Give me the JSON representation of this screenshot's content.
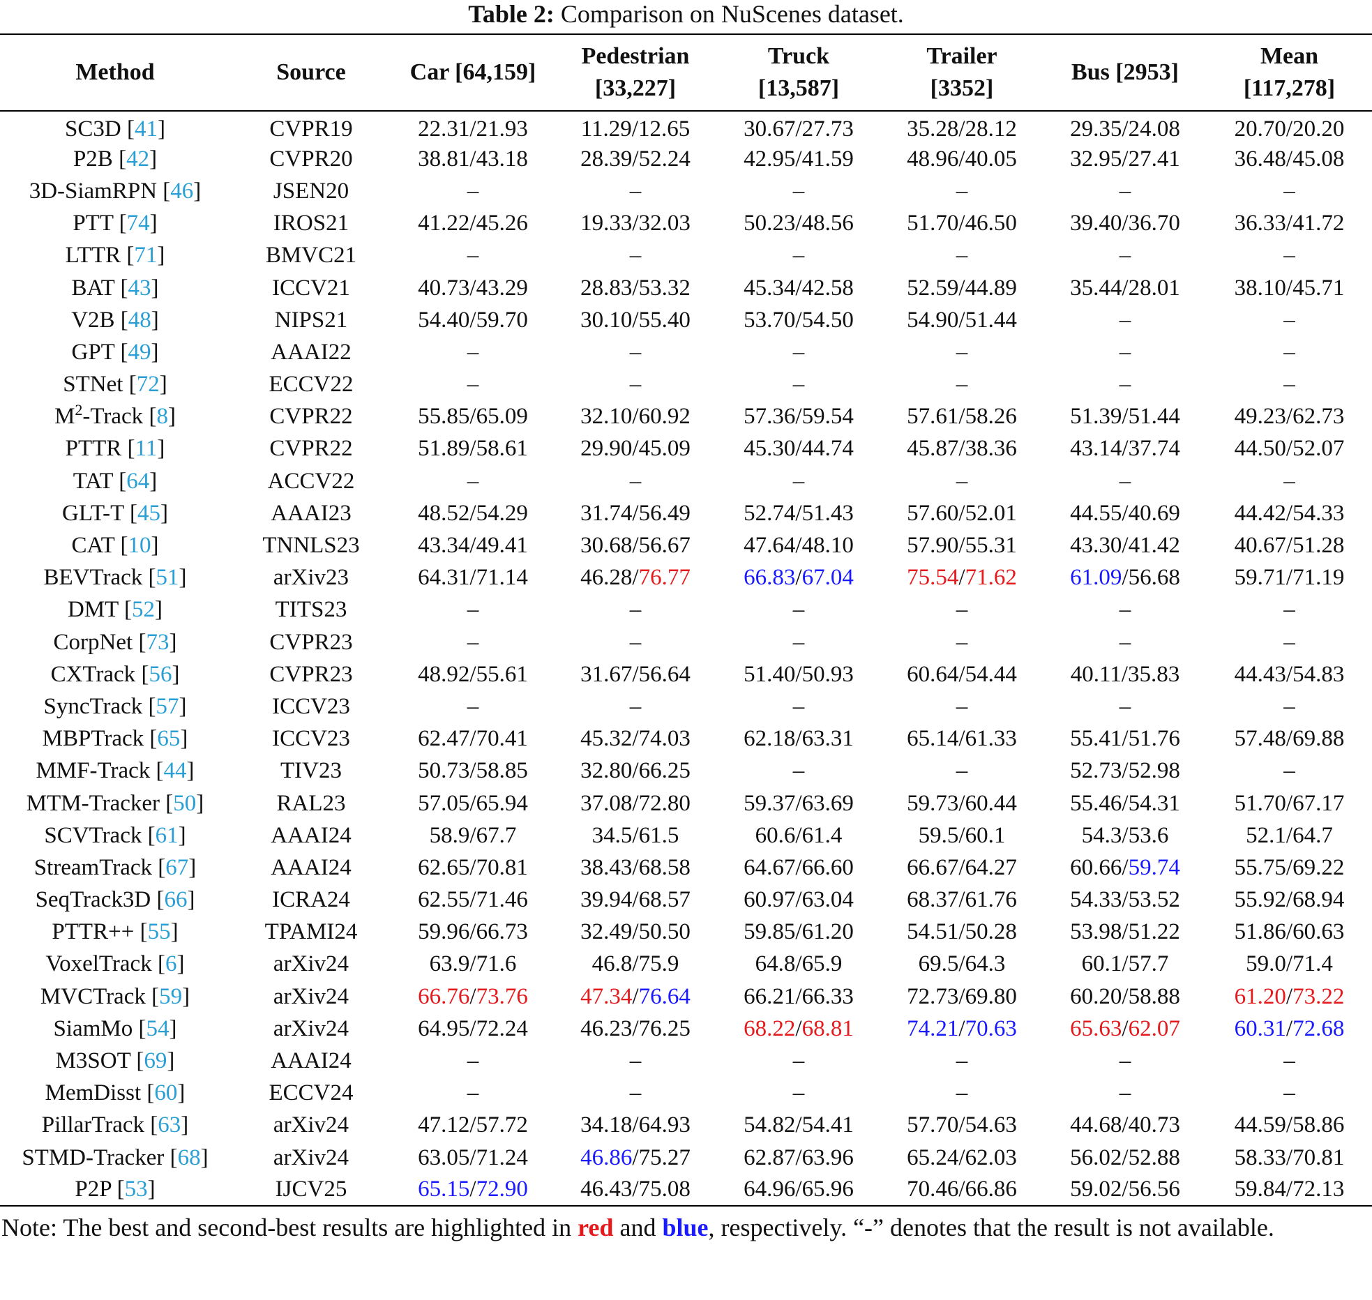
{
  "caption": {
    "label": "Table 2:",
    "text": "Comparison on NuScenes dataset."
  },
  "headers": [
    "Method",
    "Source",
    "Car [64,159]",
    "Pedestrian [33,227]",
    "Truck [13,587]",
    "Trailer [3352]",
    "Bus [2953]",
    "Mean [117,278]"
  ],
  "rows": [
    {
      "m": "SC3D",
      "ref": "41",
      "src": "CVPR19",
      "v": [
        [
          "22.31",
          "",
          "21.93",
          ""
        ],
        [
          "11.29",
          "",
          "12.65",
          ""
        ],
        [
          "30.67",
          "",
          "27.73",
          ""
        ],
        [
          "35.28",
          "",
          "28.12",
          ""
        ],
        [
          "29.35",
          "",
          "24.08",
          ""
        ],
        [
          "20.70",
          "",
          "20.20",
          ""
        ]
      ]
    },
    {
      "m": "P2B",
      "ref": "42",
      "src": "CVPR20",
      "v": [
        [
          "38.81",
          "",
          "43.18",
          ""
        ],
        [
          "28.39",
          "",
          "52.24",
          ""
        ],
        [
          "42.95",
          "",
          "41.59",
          ""
        ],
        [
          "48.96",
          "",
          "40.05",
          ""
        ],
        [
          "32.95",
          "",
          "27.41",
          ""
        ],
        [
          "36.48",
          "",
          "45.08",
          ""
        ]
      ]
    },
    {
      "m": "3D-SiamRPN",
      "ref": "46",
      "src": "JSEN20",
      "v": [
        "–",
        "–",
        "–",
        "–",
        "–",
        "–"
      ]
    },
    {
      "m": "PTT",
      "ref": "74",
      "src": "IROS21",
      "v": [
        [
          "41.22",
          "",
          "45.26",
          ""
        ],
        [
          "19.33",
          "",
          "32.03",
          ""
        ],
        [
          "50.23",
          "",
          "48.56",
          ""
        ],
        [
          "51.70",
          "",
          "46.50",
          ""
        ],
        [
          "39.40",
          "",
          "36.70",
          ""
        ],
        [
          "36.33",
          "",
          "41.72",
          ""
        ]
      ]
    },
    {
      "m": "LTTR",
      "ref": "71",
      "src": "BMVC21",
      "v": [
        "–",
        "–",
        "–",
        "–",
        "–",
        "–"
      ]
    },
    {
      "m": "BAT",
      "ref": "43",
      "src": "ICCV21",
      "v": [
        [
          "40.73",
          "",
          "43.29",
          ""
        ],
        [
          "28.83",
          "",
          "53.32",
          ""
        ],
        [
          "45.34",
          "",
          "42.58",
          ""
        ],
        [
          "52.59",
          "",
          "44.89",
          ""
        ],
        [
          "35.44",
          "",
          "28.01",
          ""
        ],
        [
          "38.10",
          "",
          "45.71",
          ""
        ]
      ]
    },
    {
      "m": "V2B",
      "ref": "48",
      "src": "NIPS21",
      "v": [
        [
          "54.40",
          "",
          "59.70",
          ""
        ],
        [
          "30.10",
          "",
          "55.40",
          ""
        ],
        [
          "53.70",
          "",
          "54.50",
          ""
        ],
        [
          "54.90",
          "",
          "51.44",
          ""
        ],
        "–",
        "–"
      ]
    },
    {
      "m": "GPT",
      "ref": "49",
      "src": "AAAI22",
      "v": [
        "–",
        "–",
        "–",
        "–",
        "–",
        "–"
      ]
    },
    {
      "m": "STNet",
      "ref": "72",
      "src": "ECCV22",
      "v": [
        "–",
        "–",
        "–",
        "–",
        "–",
        "–"
      ]
    },
    {
      "m": "M",
      "sup": "2",
      "m2": "-Track",
      "ref": "8",
      "src": "CVPR22",
      "v": [
        [
          "55.85",
          "",
          "65.09",
          ""
        ],
        [
          "32.10",
          "",
          "60.92",
          ""
        ],
        [
          "57.36",
          "",
          "59.54",
          ""
        ],
        [
          "57.61",
          "",
          "58.26",
          ""
        ],
        [
          "51.39",
          "",
          "51.44",
          ""
        ],
        [
          "49.23",
          "",
          "62.73",
          ""
        ]
      ]
    },
    {
      "m": "PTTR",
      "ref": "11",
      "src": "CVPR22",
      "v": [
        [
          "51.89",
          "",
          "58.61",
          ""
        ],
        [
          "29.90",
          "",
          "45.09",
          ""
        ],
        [
          "45.30",
          "",
          "44.74",
          ""
        ],
        [
          "45.87",
          "",
          "38.36",
          ""
        ],
        [
          "43.14",
          "",
          "37.74",
          ""
        ],
        [
          "44.50",
          "",
          "52.07",
          ""
        ]
      ]
    },
    {
      "m": "TAT",
      "ref": "64",
      "src": "ACCV22",
      "v": [
        "–",
        "–",
        "–",
        "–",
        "–",
        "–"
      ]
    },
    {
      "m": "GLT-T",
      "ref": "45",
      "src": "AAAI23",
      "v": [
        [
          "48.52",
          "",
          "54.29",
          ""
        ],
        [
          "31.74",
          "",
          "56.49",
          ""
        ],
        [
          "52.74",
          "",
          "51.43",
          ""
        ],
        [
          "57.60",
          "",
          "52.01",
          ""
        ],
        [
          "44.55",
          "",
          "40.69",
          ""
        ],
        [
          "44.42",
          "",
          "54.33",
          ""
        ]
      ]
    },
    {
      "m": "CAT",
      "ref": "10",
      "src": "TNNLS23",
      "v": [
        [
          "43.34",
          "",
          "49.41",
          ""
        ],
        [
          "30.68",
          "",
          "56.67",
          ""
        ],
        [
          "47.64",
          "",
          "48.10",
          ""
        ],
        [
          "57.90",
          "",
          "55.31",
          ""
        ],
        [
          "43.30",
          "",
          "41.42",
          ""
        ],
        [
          "40.67",
          "",
          "51.28",
          ""
        ]
      ]
    },
    {
      "m": "BEVTrack",
      "ref": "51",
      "src": "arXiv23",
      "v": [
        [
          "64.31",
          "",
          "71.14",
          ""
        ],
        [
          "46.28",
          "",
          "76.77",
          "r"
        ],
        [
          "66.83",
          "b",
          "67.04",
          "b"
        ],
        [
          "75.54",
          "r",
          "71.62",
          "r"
        ],
        [
          "61.09",
          "b",
          "56.68",
          ""
        ],
        [
          "59.71",
          "",
          "71.19",
          ""
        ]
      ]
    },
    {
      "m": "DMT",
      "ref": "52",
      "src": "TITS23",
      "v": [
        "–",
        "–",
        "–",
        "–",
        "–",
        "–"
      ]
    },
    {
      "m": "CorpNet",
      "ref": "73",
      "src": "CVPR23",
      "v": [
        "–",
        "–",
        "–",
        "–",
        "–",
        "–"
      ]
    },
    {
      "m": "CXTrack",
      "ref": "56",
      "src": "CVPR23",
      "v": [
        [
          "48.92",
          "",
          "55.61",
          ""
        ],
        [
          "31.67",
          "",
          "56.64",
          ""
        ],
        [
          "51.40",
          "",
          "50.93",
          ""
        ],
        [
          "60.64",
          "",
          "54.44",
          ""
        ],
        [
          "40.11",
          "",
          "35.83",
          ""
        ],
        [
          "44.43",
          "",
          "54.83",
          ""
        ]
      ]
    },
    {
      "m": "SyncTrack",
      "ref": "57",
      "src": "ICCV23",
      "v": [
        "–",
        "–",
        "–",
        "–",
        "–",
        "–"
      ]
    },
    {
      "m": "MBPTrack",
      "ref": "65",
      "src": "ICCV23",
      "v": [
        [
          "62.47",
          "",
          "70.41",
          ""
        ],
        [
          "45.32",
          "",
          "74.03",
          ""
        ],
        [
          "62.18",
          "",
          "63.31",
          ""
        ],
        [
          "65.14",
          "",
          "61.33",
          ""
        ],
        [
          "55.41",
          "",
          "51.76",
          ""
        ],
        [
          "57.48",
          "",
          "69.88",
          ""
        ]
      ]
    },
    {
      "m": "MMF-Track",
      "ref": "44",
      "src": "TIV23",
      "v": [
        [
          "50.73",
          "",
          "58.85",
          ""
        ],
        [
          "32.80",
          "",
          "66.25",
          ""
        ],
        "–",
        "–",
        [
          "52.73",
          "",
          "52.98",
          ""
        ],
        "–"
      ]
    },
    {
      "m": "MTM-Tracker",
      "ref": "50",
      "src": "RAL23",
      "v": [
        [
          "57.05",
          "",
          "65.94",
          ""
        ],
        [
          "37.08",
          "",
          "72.80",
          ""
        ],
        [
          "59.37",
          "",
          "63.69",
          ""
        ],
        [
          "59.73",
          "",
          "60.44",
          ""
        ],
        [
          "55.46",
          "",
          "54.31",
          ""
        ],
        [
          "51.70",
          "",
          "67.17",
          ""
        ]
      ]
    },
    {
      "m": "SCVTrack",
      "ref": "61",
      "src": "AAAI24",
      "v": [
        [
          "58.9",
          "",
          "67.7",
          ""
        ],
        [
          "34.5",
          "",
          "61.5",
          ""
        ],
        [
          "60.6",
          "",
          "61.4",
          ""
        ],
        [
          "59.5",
          "",
          "60.1",
          ""
        ],
        [
          "54.3",
          "",
          "53.6",
          ""
        ],
        [
          "52.1",
          "",
          "64.7",
          ""
        ]
      ]
    },
    {
      "m": "StreamTrack",
      "ref": "67",
      "src": "AAAI24",
      "v": [
        [
          "62.65",
          "",
          "70.81",
          ""
        ],
        [
          "38.43",
          "",
          "68.58",
          ""
        ],
        [
          "64.67",
          "",
          "66.60",
          ""
        ],
        [
          "66.67",
          "",
          "64.27",
          ""
        ],
        [
          "60.66",
          "",
          "59.74",
          "b"
        ],
        [
          "55.75",
          "",
          "69.22",
          ""
        ]
      ]
    },
    {
      "m": "SeqTrack3D",
      "ref": "66",
      "src": "ICRA24",
      "v": [
        [
          "62.55",
          "",
          "71.46",
          ""
        ],
        [
          "39.94",
          "",
          "68.57",
          ""
        ],
        [
          "60.97",
          "",
          "63.04",
          ""
        ],
        [
          "68.37",
          "",
          "61.76",
          ""
        ],
        [
          "54.33",
          "",
          "53.52",
          ""
        ],
        [
          "55.92",
          "",
          "68.94",
          ""
        ]
      ]
    },
    {
      "m": "PTTR++",
      "ref": "55",
      "src": "TPAMI24",
      "v": [
        [
          "59.96",
          "",
          "66.73",
          ""
        ],
        [
          "32.49",
          "",
          "50.50",
          ""
        ],
        [
          "59.85",
          "",
          "61.20",
          ""
        ],
        [
          "54.51",
          "",
          "50.28",
          ""
        ],
        [
          "53.98",
          "",
          "51.22",
          ""
        ],
        [
          "51.86",
          "",
          "60.63",
          ""
        ]
      ]
    },
    {
      "m": "VoxelTrack",
      "ref": "6",
      "src": "arXiv24",
      "v": [
        [
          "63.9",
          "",
          "71.6",
          ""
        ],
        [
          "46.8",
          "",
          "75.9",
          ""
        ],
        [
          "64.8",
          "",
          "65.9",
          ""
        ],
        [
          "69.5",
          "",
          "64.3",
          ""
        ],
        [
          "60.1",
          "",
          "57.7",
          ""
        ],
        [
          "59.0",
          "",
          "71.4",
          ""
        ]
      ]
    },
    {
      "m": "MVCTrack",
      "ref": "59",
      "src": "arXiv24",
      "v": [
        [
          "66.76",
          "r",
          "73.76",
          "r"
        ],
        [
          "47.34",
          "r",
          "76.64",
          "b"
        ],
        [
          "66.21",
          "",
          "66.33",
          ""
        ],
        [
          "72.73",
          "",
          "69.80",
          ""
        ],
        [
          "60.20",
          "",
          "58.88",
          ""
        ],
        [
          "61.20",
          "r",
          "73.22",
          "r"
        ]
      ]
    },
    {
      "m": "SiamMo",
      "ref": "54",
      "src": "arXiv24",
      "v": [
        [
          "64.95",
          "",
          "72.24",
          ""
        ],
        [
          "46.23",
          "",
          "76.25",
          ""
        ],
        [
          "68.22",
          "r",
          "68.81",
          "r"
        ],
        [
          "74.21",
          "b",
          "70.63",
          "b"
        ],
        [
          "65.63",
          "r",
          "62.07",
          "r"
        ],
        [
          "60.31",
          "b",
          "72.68",
          "b"
        ]
      ]
    },
    {
      "m": "M3SOT",
      "ref": "69",
      "src": "AAAI24",
      "v": [
        "–",
        "–",
        "–",
        "–",
        "–",
        "–"
      ]
    },
    {
      "m": "MemDisst",
      "ref": "60",
      "src": "ECCV24",
      "v": [
        "–",
        "–",
        "–",
        "–",
        "–",
        "–"
      ]
    },
    {
      "m": "PillarTrack",
      "ref": "63",
      "src": "arXiv24",
      "v": [
        [
          "47.12",
          "",
          "57.72",
          ""
        ],
        [
          "34.18",
          "",
          "64.93",
          ""
        ],
        [
          "54.82",
          "",
          "54.41",
          ""
        ],
        [
          "57.70",
          "",
          "54.63",
          ""
        ],
        [
          "44.68",
          "",
          "40.73",
          ""
        ],
        [
          "44.59",
          "",
          "58.86",
          ""
        ]
      ]
    },
    {
      "m": "STMD-Tracker",
      "ref": "68",
      "src": "arXiv24",
      "v": [
        [
          "63.05",
          "",
          "71.24",
          ""
        ],
        [
          "46.86",
          "b",
          "75.27",
          ""
        ],
        [
          "62.87",
          "",
          "63.96",
          ""
        ],
        [
          "65.24",
          "",
          "62.03",
          ""
        ],
        [
          "56.02",
          "",
          "52.88",
          ""
        ],
        [
          "58.33",
          "",
          "70.81",
          ""
        ]
      ]
    },
    {
      "m": "P2P",
      "ref": "53",
      "src": "IJCV25",
      "v": [
        [
          "65.15",
          "b",
          "72.90",
          "b"
        ],
        [
          "46.43",
          "",
          "75.08",
          ""
        ],
        [
          "64.96",
          "",
          "65.96",
          ""
        ],
        [
          "70.46",
          "",
          "66.86",
          ""
        ],
        [
          "59.02",
          "",
          "56.56",
          ""
        ],
        [
          "59.84",
          "",
          "72.13",
          ""
        ]
      ]
    }
  ],
  "note": {
    "prefix": "Note: The best and second-best results are highlighted in",
    "red_word": "red",
    "and_word": "and",
    "blue_word": "blue",
    "suffix": ", respectively. “-” denotes that the result is not available."
  }
}
